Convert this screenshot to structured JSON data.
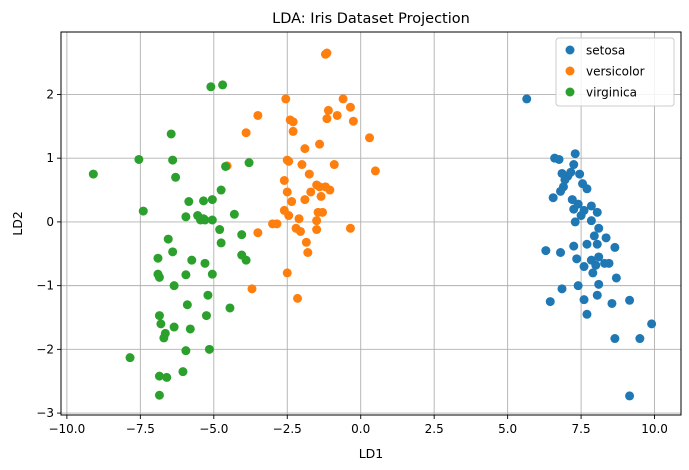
{
  "chart_data": {
    "type": "scatter",
    "title": "LDA: Iris Dataset Projection",
    "xlabel": "LD1",
    "ylabel": "LD2",
    "xlim": [
      -10.2,
      10.9
    ],
    "ylim": [
      -3.03,
      2.98
    ],
    "xticks": [
      -10.0,
      -7.5,
      -5.0,
      -2.5,
      0.0,
      2.5,
      5.0,
      7.5,
      10.0
    ],
    "yticks": [
      -3,
      -2,
      -1,
      0,
      1,
      2
    ],
    "xtick_labels": [
      "−10.0",
      "−7.5",
      "−5.0",
      "−2.5",
      "0.0",
      "2.5",
      "5.0",
      "7.5",
      "10.0"
    ],
    "ytick_labels": [
      "−3",
      "−2",
      "−1",
      "0",
      "1",
      "2"
    ],
    "grid": true,
    "legend_position": "top-right",
    "series": [
      {
        "name": "setosa",
        "color": "#1f77b4",
        "points": [
          [
            5.65,
            1.93
          ],
          [
            6.6,
            1.0
          ],
          [
            6.75,
            0.98
          ],
          [
            7.3,
            1.07
          ],
          [
            7.25,
            0.9
          ],
          [
            6.85,
            0.76
          ],
          [
            7.05,
            0.72
          ],
          [
            6.95,
            0.66
          ],
          [
            7.15,
            0.78
          ],
          [
            7.45,
            0.75
          ],
          [
            7.55,
            0.6
          ],
          [
            6.9,
            0.55
          ],
          [
            6.8,
            0.48
          ],
          [
            7.7,
            0.52
          ],
          [
            7.2,
            0.35
          ],
          [
            6.55,
            0.38
          ],
          [
            7.4,
            0.28
          ],
          [
            7.85,
            0.25
          ],
          [
            7.25,
            0.2
          ],
          [
            7.6,
            0.18
          ],
          [
            8.05,
            0.15
          ],
          [
            7.5,
            0.1
          ],
          [
            7.85,
            0.02
          ],
          [
            7.3,
            0.0
          ],
          [
            8.1,
            -0.1
          ],
          [
            7.95,
            -0.22
          ],
          [
            8.35,
            -0.25
          ],
          [
            7.7,
            -0.35
          ],
          [
            8.05,
            -0.35
          ],
          [
            7.25,
            -0.38
          ],
          [
            6.3,
            -0.45
          ],
          [
            6.8,
            -0.48
          ],
          [
            8.65,
            -0.4
          ],
          [
            8.1,
            -0.55
          ],
          [
            7.85,
            -0.6
          ],
          [
            7.35,
            -0.58
          ],
          [
            8.0,
            -0.68
          ],
          [
            7.6,
            -0.7
          ],
          [
            8.3,
            -0.65
          ],
          [
            8.45,
            -0.65
          ],
          [
            7.9,
            -0.8
          ],
          [
            8.7,
            -0.88
          ],
          [
            8.1,
            -0.98
          ],
          [
            7.4,
            -1.0
          ],
          [
            6.85,
            -1.05
          ],
          [
            8.05,
            -1.15
          ],
          [
            7.6,
            -1.22
          ],
          [
            6.45,
            -1.25
          ],
          [
            8.55,
            -1.28
          ],
          [
            7.7,
            -1.45
          ],
          [
            9.15,
            -1.23
          ],
          [
            9.9,
            -1.6
          ],
          [
            8.65,
            -1.83
          ],
          [
            9.5,
            -1.83
          ],
          [
            9.15,
            -2.73
          ]
        ]
      },
      {
        "name": "versicolor",
        "color": "#ff7f0e",
        "points": [
          [
            -1.2,
            2.63
          ],
          [
            -1.15,
            2.65
          ],
          [
            -0.6,
            1.93
          ],
          [
            -2.55,
            1.93
          ],
          [
            -0.35,
            1.8
          ],
          [
            -1.1,
            1.75
          ],
          [
            -3.5,
            1.67
          ],
          [
            -2.4,
            1.6
          ],
          [
            -2.3,
            1.57
          ],
          [
            -0.8,
            1.67
          ],
          [
            -1.15,
            1.62
          ],
          [
            -0.25,
            1.58
          ],
          [
            -2.3,
            1.42
          ],
          [
            -3.9,
            1.4
          ],
          [
            0.3,
            1.32
          ],
          [
            -1.4,
            1.22
          ],
          [
            -1.9,
            1.15
          ],
          [
            -2.5,
            0.97
          ],
          [
            -2.45,
            0.95
          ],
          [
            -4.55,
            0.88
          ],
          [
            -2.0,
            0.9
          ],
          [
            -0.9,
            0.9
          ],
          [
            0.5,
            0.8
          ],
          [
            -1.75,
            0.75
          ],
          [
            -2.6,
            0.65
          ],
          [
            -1.5,
            0.58
          ],
          [
            -1.4,
            0.55
          ],
          [
            -1.2,
            0.55
          ],
          [
            -1.05,
            0.5
          ],
          [
            -1.7,
            0.47
          ],
          [
            -2.5,
            0.47
          ],
          [
            -1.35,
            0.4
          ],
          [
            -1.9,
            0.35
          ],
          [
            -2.35,
            0.32
          ],
          [
            -2.6,
            0.18
          ],
          [
            -1.45,
            0.15
          ],
          [
            -1.3,
            0.15
          ],
          [
            -2.45,
            0.1
          ],
          [
            -2.1,
            0.05
          ],
          [
            -1.5,
            0.02
          ],
          [
            -3.0,
            -0.03
          ],
          [
            -2.85,
            -0.03
          ],
          [
            -2.2,
            -0.1
          ],
          [
            -1.5,
            -0.12
          ],
          [
            -2.05,
            -0.15
          ],
          [
            -3.5,
            -0.17
          ],
          [
            -0.35,
            -0.1
          ],
          [
            -1.85,
            -0.32
          ],
          [
            -1.8,
            -0.48
          ],
          [
            -2.5,
            -0.8
          ],
          [
            -3.7,
            -1.05
          ],
          [
            -2.15,
            -1.2
          ]
        ]
      },
      {
        "name": "virginica",
        "color": "#2ca02c",
        "points": [
          [
            -4.7,
            2.15
          ],
          [
            -5.1,
            2.12
          ],
          [
            -6.45,
            1.38
          ],
          [
            -7.55,
            0.98
          ],
          [
            -6.4,
            0.97
          ],
          [
            -3.8,
            0.93
          ],
          [
            -4.6,
            0.87
          ],
          [
            -9.1,
            0.75
          ],
          [
            -6.3,
            0.7
          ],
          [
            -4.75,
            0.5
          ],
          [
            -5.85,
            0.32
          ],
          [
            -5.35,
            0.33
          ],
          [
            -5.05,
            0.35
          ],
          [
            -7.4,
            0.17
          ],
          [
            -4.3,
            0.12
          ],
          [
            -5.55,
            0.1
          ],
          [
            -5.95,
            0.08
          ],
          [
            -5.3,
            0.03
          ],
          [
            -5.45,
            0.03
          ],
          [
            -5.05,
            0.03
          ],
          [
            -5.35,
            0.05
          ],
          [
            -4.8,
            -0.12
          ],
          [
            -4.05,
            -0.2
          ],
          [
            -4.75,
            -0.33
          ],
          [
            -6.55,
            -0.27
          ],
          [
            -6.4,
            -0.47
          ],
          [
            -4.05,
            -0.52
          ],
          [
            -3.9,
            -0.6
          ],
          [
            -6.9,
            -0.57
          ],
          [
            -5.75,
            -0.6
          ],
          [
            -5.3,
            -0.65
          ],
          [
            -5.95,
            -0.83
          ],
          [
            -6.9,
            -0.82
          ],
          [
            -5.05,
            -0.82
          ],
          [
            -6.85,
            -0.87
          ],
          [
            -6.35,
            -1.0
          ],
          [
            -5.2,
            -1.15
          ],
          [
            -5.9,
            -1.3
          ],
          [
            -4.45,
            -1.35
          ],
          [
            -6.85,
            -1.47
          ],
          [
            -5.25,
            -1.47
          ],
          [
            -6.8,
            -1.6
          ],
          [
            -6.35,
            -1.65
          ],
          [
            -5.8,
            -1.68
          ],
          [
            -6.65,
            -1.75
          ],
          [
            -6.7,
            -1.82
          ],
          [
            -5.95,
            -2.02
          ],
          [
            -5.15,
            -2.0
          ],
          [
            -7.85,
            -2.13
          ],
          [
            -6.05,
            -2.35
          ],
          [
            -6.85,
            -2.42
          ],
          [
            -6.6,
            -2.44
          ],
          [
            -6.85,
            -2.72
          ]
        ]
      }
    ]
  }
}
